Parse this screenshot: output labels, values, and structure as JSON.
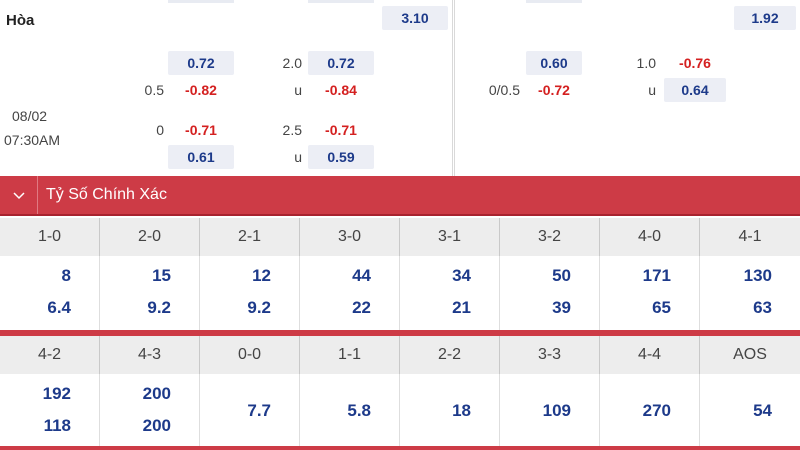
{
  "left_match": {
    "draw_label": "Hòa",
    "draw_odd": "3.10",
    "date": "08/02",
    "time": "07:30AM",
    "handicap": {
      "line1": "0.5",
      "odd_top": "0.72",
      "odd_line1": "-0.82",
      "line2": "0",
      "odd_line2": "-0.71",
      "odd_bottom": "0.61"
    },
    "over_under": {
      "line1": "2.0",
      "odd_top": "0.72",
      "u1": "u",
      "odd_u1": "-0.84",
      "line2": "2.5",
      "odd_line2": "-0.71",
      "u2": "u",
      "odd_u2": "0.59"
    }
  },
  "right_match": {
    "draw_odd": "1.92",
    "handicap": {
      "odd_top": "0.60",
      "line": "0/0.5",
      "odd_line": "-0.72"
    },
    "over_under": {
      "line": "1.0",
      "odd_line": "-0.76",
      "u": "u",
      "odd_u": "0.64"
    }
  },
  "section": {
    "toggle_icon": "chevron-down-icon",
    "title": "Tỷ Số Chính Xác",
    "accent_color": "#cd3b46"
  },
  "score_table_1": {
    "headers": [
      "1-0",
      "2-0",
      "2-1",
      "3-0",
      "3-1",
      "3-2",
      "4-0",
      "4-1"
    ],
    "top": [
      "8",
      "15",
      "12",
      "44",
      "34",
      "50",
      "171",
      "130"
    ],
    "bottom": [
      "6.4",
      "9.2",
      "9.2",
      "22",
      "21",
      "39",
      "65",
      "63"
    ]
  },
  "score_table_2": {
    "headers": [
      "4-2",
      "4-3",
      "0-0",
      "1-1",
      "2-2",
      "3-3",
      "4-4",
      "AOS"
    ],
    "top": [
      "192",
      "200",
      "",
      "",
      "",
      "",
      "",
      ""
    ],
    "bottom": [
      "118",
      "200",
      "",
      "",
      "",
      "",
      "",
      ""
    ],
    "center": [
      "",
      "",
      "7.7",
      "5.8",
      "18",
      "109",
      "270",
      "54"
    ]
  }
}
